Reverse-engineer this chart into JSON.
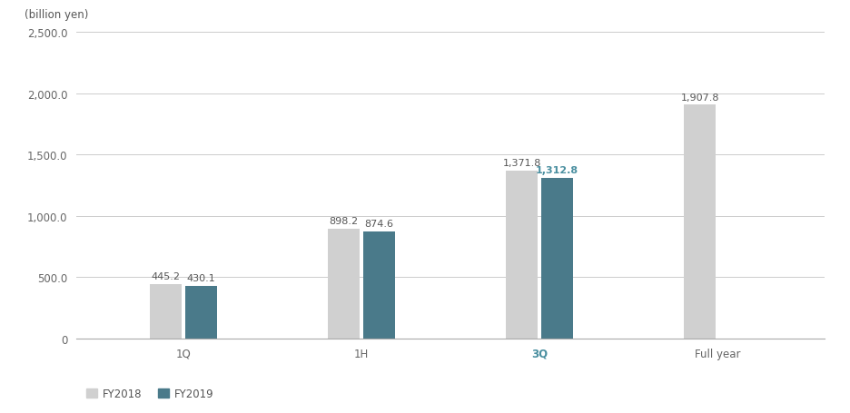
{
  "categories": [
    "1Q",
    "1H",
    "3Q",
    "Full year"
  ],
  "fy2018_values": [
    445.2,
    898.2,
    1371.8,
    1907.8
  ],
  "fy2019_values": [
    430.1,
    874.6,
    1312.8,
    null
  ],
  "fy2018_color": "#d0d0d0",
  "fy2019_color": "#4a7a8a",
  "fy2019_label_color": "#4a8fa0",
  "ylabel": "(billion yen)",
  "ylim": [
    0,
    2500
  ],
  "yticks": [
    0,
    500.0,
    1000.0,
    1500.0,
    2000.0,
    2500.0
  ],
  "bar_width": 0.18,
  "label_fontsize": 8.0,
  "axis_fontsize": 8.5,
  "legend_fontsize": 8.5,
  "tick_label_fontsize": 8.5,
  "highlight_category": "3Q",
  "highlight_color": "#4a8fa0",
  "background_color": "#ffffff",
  "grid_color": "#cccccc",
  "spine_color": "#aaaaaa"
}
